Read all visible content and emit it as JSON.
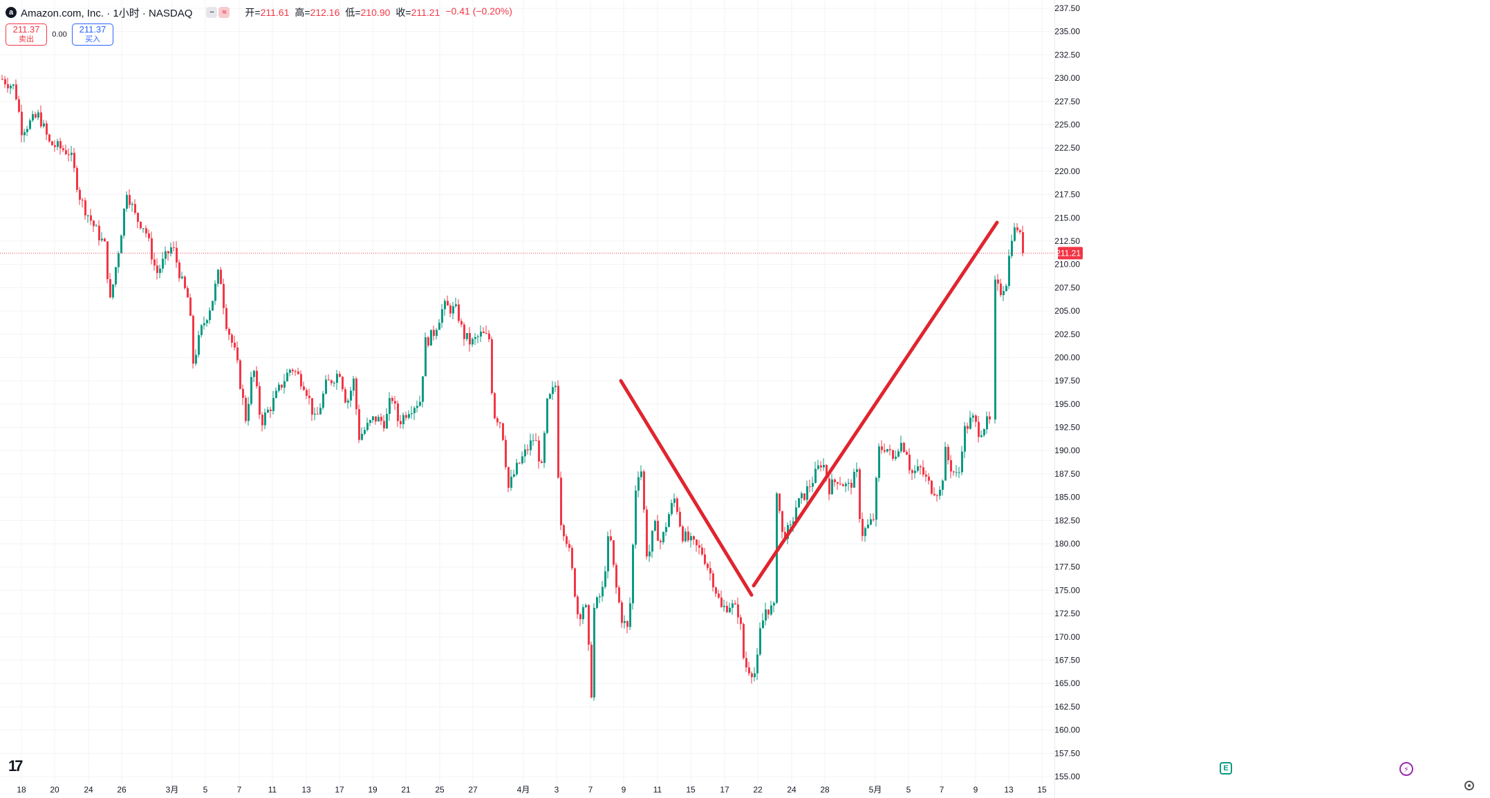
{
  "header": {
    "logo_icon": "amazon-logo-icon",
    "logo_glyph": "a",
    "symbol": "Amazon.com, Inc. · 1小时 · NASDAQ",
    "pill_minus": "−",
    "pill_wave": "≈",
    "open_label": "开=",
    "open": "211.61",
    "high_label": "高=",
    "high": "212.16",
    "low_label": "低=",
    "low": "210.90",
    "close_label": "收=",
    "close": "211.21",
    "change": "−0.41 (−0.20%)"
  },
  "trade": {
    "sell_price": "211.37",
    "sell_label": "卖出",
    "spread": "0.00",
    "buy_price": "211.37",
    "buy_label": "买入"
  },
  "colors": {
    "up": "#089981",
    "down": "#f23645",
    "trendline": "#e0252f",
    "grid": "#f2f3f5",
    "axis_text": "#131722",
    "price_line": "#f23645"
  },
  "icons": {
    "tradingview_logo": "tradingview-logo-icon",
    "events": "earnings-event-icon",
    "flash": "flash-icon",
    "settings": "settings-icon"
  },
  "badges": {
    "events_glyph": "E",
    "flash_glyph": "⚡",
    "tv_glyph": "17"
  },
  "chart_data": {
    "type": "candlestick",
    "interval": "1小时",
    "ylim": [
      155.0,
      237.5
    ],
    "y_ticks": [
      "237.50",
      "235.00",
      "232.50",
      "230.00",
      "227.50",
      "225.00",
      "222.50",
      "220.00",
      "217.50",
      "215.00",
      "212.50",
      "210.00",
      "207.50",
      "205.00",
      "202.50",
      "200.00",
      "197.50",
      "195.00",
      "192.50",
      "190.00",
      "187.50",
      "185.00",
      "182.50",
      "180.00",
      "177.50",
      "175.00",
      "172.50",
      "170.00",
      "167.50",
      "165.00",
      "162.50",
      "160.00",
      "157.50",
      "155.00"
    ],
    "x_ticks": [
      "18",
      "20",
      "24",
      "26",
      "3月",
      "5",
      "7",
      "11",
      "13",
      "17",
      "19",
      "21",
      "25",
      "27",
      "4月",
      "3",
      "7",
      "9",
      "11",
      "15",
      "17",
      "22",
      "24",
      "28",
      "5月",
      "5",
      "7",
      "9",
      "13",
      "15"
    ],
    "current_price": "211.21",
    "last_price": 211.21,
    "anchors": [
      [
        0,
        230.0
      ],
      [
        20,
        229.0
      ],
      [
        30,
        224.5
      ],
      [
        55,
        226.0
      ],
      [
        70,
        223.0
      ],
      [
        100,
        222.0
      ],
      [
        115,
        217.0
      ],
      [
        135,
        214.0
      ],
      [
        150,
        212.0
      ],
      [
        158,
        206.0
      ],
      [
        172,
        212.5
      ],
      [
        182,
        218.0
      ],
      [
        195,
        215.0
      ],
      [
        208,
        214.0
      ],
      [
        225,
        209.0
      ],
      [
        240,
        211.0
      ],
      [
        248,
        212.0
      ],
      [
        262,
        208.0
      ],
      [
        272,
        206.0
      ],
      [
        278,
        199.5
      ],
      [
        290,
        203.0
      ],
      [
        305,
        206.0
      ],
      [
        316,
        209.5
      ],
      [
        325,
        204.0
      ],
      [
        340,
        200.0
      ],
      [
        354,
        193.5
      ],
      [
        365,
        199.0
      ],
      [
        376,
        193.0
      ],
      [
        392,
        195.0
      ],
      [
        405,
        197.0
      ],
      [
        420,
        199.0
      ],
      [
        440,
        197.0
      ],
      [
        455,
        193.0
      ],
      [
        470,
        197.0
      ],
      [
        490,
        198.5
      ],
      [
        500,
        195.0
      ],
      [
        510,
        197.5
      ],
      [
        518,
        191.5
      ],
      [
        540,
        193.5
      ],
      [
        556,
        193.0
      ],
      [
        565,
        196.0
      ],
      [
        575,
        193.0
      ],
      [
        590,
        194.5
      ],
      [
        608,
        195.5
      ],
      [
        612,
        201.5
      ],
      [
        625,
        202.5
      ],
      [
        640,
        205.5
      ],
      [
        660,
        205.0
      ],
      [
        668,
        202.5
      ],
      [
        680,
        201.5
      ],
      [
        695,
        202.5
      ],
      [
        706,
        202.0
      ],
      [
        712,
        194.0
      ],
      [
        724,
        193.0
      ],
      [
        734,
        186.0
      ],
      [
        745,
        188.0
      ],
      [
        760,
        190.0
      ],
      [
        772,
        191.5
      ],
      [
        782,
        188.0
      ],
      [
        790,
        195.0
      ],
      [
        802,
        197.0
      ],
      [
        808,
        183.0
      ],
      [
        820,
        180.0
      ],
      [
        828,
        176.0
      ],
      [
        835,
        172.0
      ],
      [
        845,
        174.0
      ],
      [
        855,
        163.0
      ],
      [
        858,
        173.0
      ],
      [
        870,
        175.0
      ],
      [
        880,
        181.5
      ],
      [
        888,
        176.0
      ],
      [
        898,
        172.0
      ],
      [
        908,
        170.5
      ],
      [
        918,
        186.0
      ],
      [
        925,
        189.0
      ],
      [
        935,
        178.0
      ],
      [
        945,
        182.0
      ],
      [
        955,
        180.0
      ],
      [
        965,
        183.0
      ],
      [
        975,
        185.0
      ],
      [
        985,
        181.0
      ],
      [
        1000,
        180.0
      ],
      [
        1015,
        179.0
      ],
      [
        1030,
        176.0
      ],
      [
        1042,
        173.0
      ],
      [
        1055,
        173.5
      ],
      [
        1068,
        172.5
      ],
      [
        1075,
        167.0
      ],
      [
        1092,
        166.0
      ],
      [
        1098,
        170.5
      ],
      [
        1106,
        173.0
      ],
      [
        1118,
        173.0
      ],
      [
        1122,
        186.0
      ],
      [
        1130,
        181.0
      ],
      [
        1142,
        181.5
      ],
      [
        1150,
        184.0
      ],
      [
        1160,
        185.0
      ],
      [
        1175,
        187.0
      ],
      [
        1188,
        189.0
      ],
      [
        1198,
        186.0
      ],
      [
        1210,
        187.0
      ],
      [
        1225,
        186.0
      ],
      [
        1238,
        187.5
      ],
      [
        1244,
        181.0
      ],
      [
        1256,
        182.0
      ],
      [
        1264,
        183.0
      ],
      [
        1268,
        190.0
      ],
      [
        1280,
        190.5
      ],
      [
        1290,
        189.0
      ],
      [
        1300,
        191.0
      ],
      [
        1310,
        190.0
      ],
      [
        1316,
        187.5
      ],
      [
        1330,
        188.0
      ],
      [
        1345,
        186.0
      ],
      [
        1360,
        185.5
      ],
      [
        1365,
        190.0
      ],
      [
        1375,
        188.0
      ],
      [
        1385,
        187.0
      ],
      [
        1392,
        192.0
      ],
      [
        1405,
        193.5
      ],
      [
        1415,
        192.0
      ],
      [
        1425,
        193.0
      ],
      [
        1433,
        193.0
      ],
      [
        1436,
        208.0
      ],
      [
        1445,
        207.0
      ],
      [
        1456,
        208.5
      ],
      [
        1460,
        213.0
      ],
      [
        1470,
        214.0
      ],
      [
        1480,
        211.21
      ]
    ],
    "gaps": [
      [
        1434,
        1434
      ]
    ],
    "trend_lines": [
      {
        "from": {
          "bar": 898,
          "price": 197.5
        },
        "to": {
          "bar": 1087,
          "price": 174.5
        }
      },
      {
        "from": {
          "bar": 1090,
          "price": 175.5
        },
        "to": {
          "bar": 1442,
          "price": 214.5
        }
      }
    ]
  }
}
